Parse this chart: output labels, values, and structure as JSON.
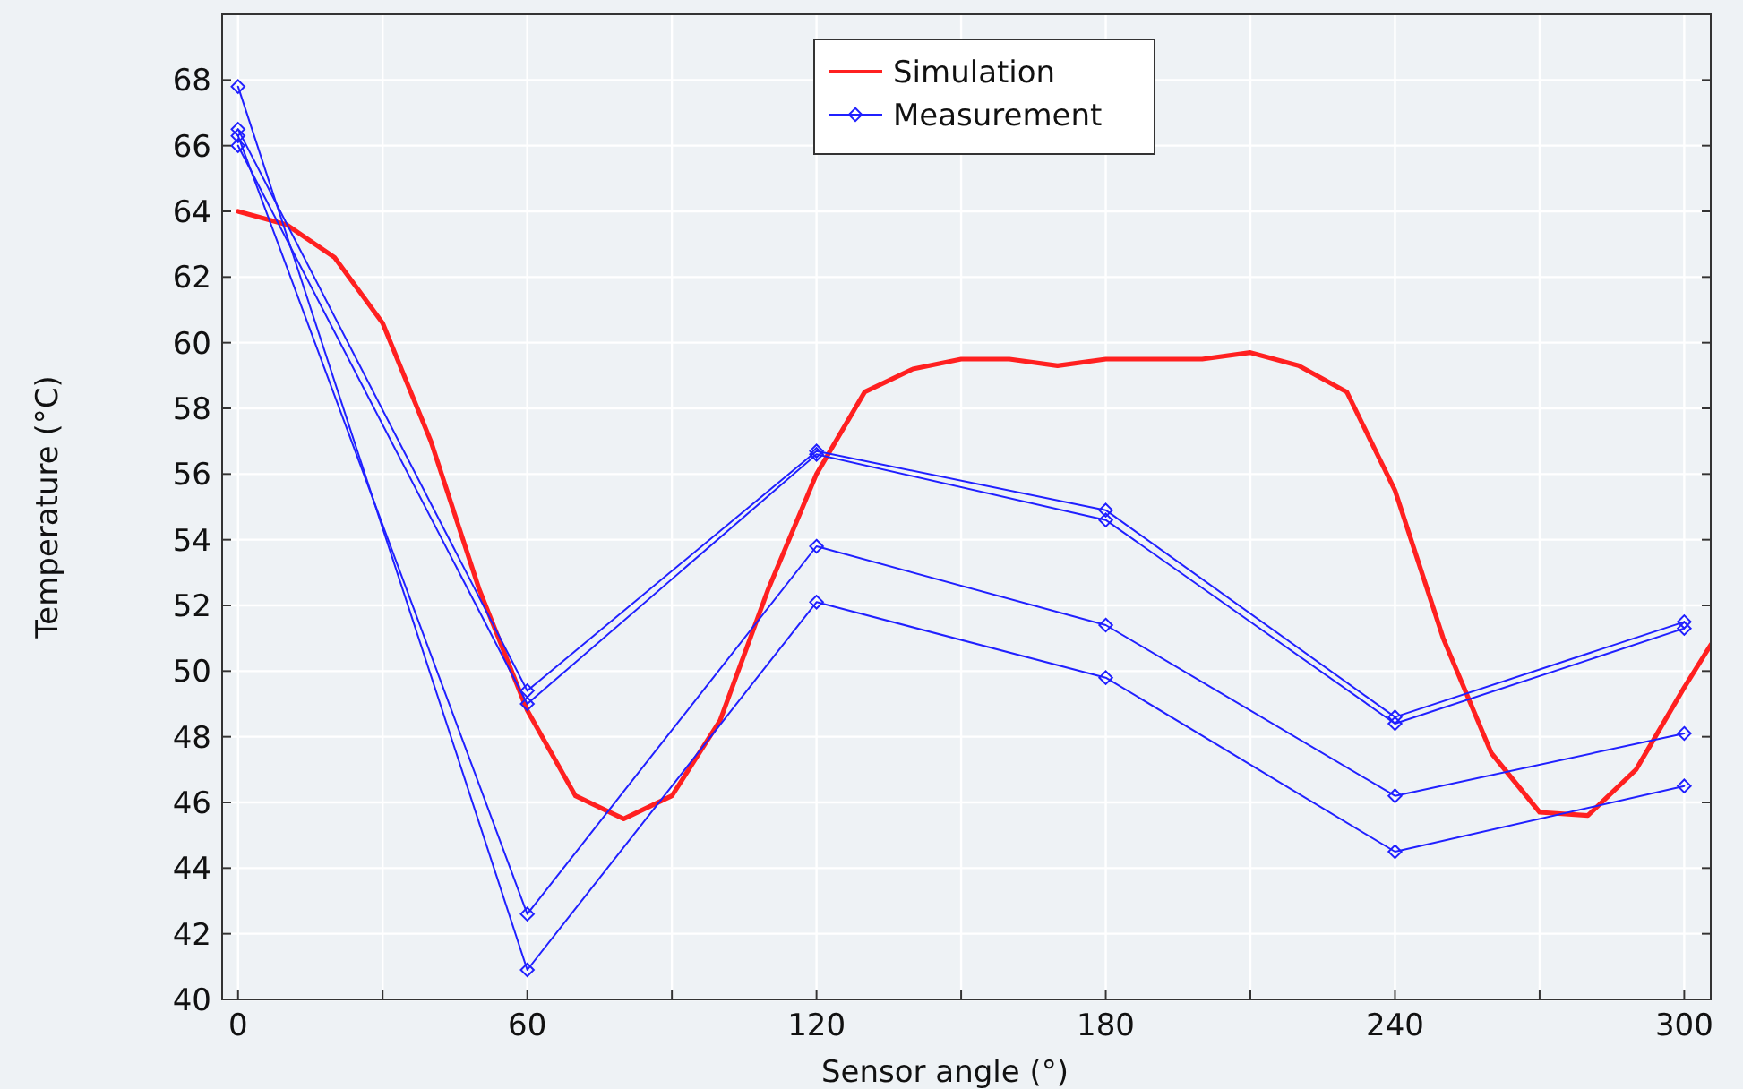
{
  "chart_data": {
    "type": "line",
    "xlabel": "Sensor angle (°)",
    "ylabel": "Temperature (°C)",
    "xlim": [
      -3.3,
      305.5
    ],
    "ylim": [
      40,
      70
    ],
    "xticks": [
      0,
      {
        "value": 30,
        "label": null
      },
      60,
      {
        "value": 90,
        "label": null
      },
      120,
      {
        "value": 150,
        "label": null
      },
      180,
      {
        "value": 210,
        "label": null
      },
      240,
      {
        "value": 270,
        "label": null
      },
      300
    ],
    "yticks": [
      40,
      42,
      44,
      46,
      48,
      50,
      52,
      54,
      56,
      58,
      60,
      62,
      64,
      66,
      68
    ],
    "grid": true,
    "legend": "top",
    "series": [
      {
        "name": "Simulation",
        "color": "#ff2020",
        "marker": "none",
        "x": [
          0,
          10,
          20,
          30,
          40,
          50,
          60,
          70,
          80,
          90,
          100,
          110,
          120,
          130,
          140,
          150,
          160,
          170,
          180,
          190,
          200,
          210,
          220,
          230,
          240,
          250,
          260,
          270,
          280,
          290,
          300,
          305.5
        ],
        "values": [
          64,
          63.6,
          62.6,
          60.6,
          57,
          52.5,
          48.8,
          46.2,
          45.5,
          46.2,
          48.5,
          52.5,
          56,
          58.5,
          59.2,
          59.5,
          59.5,
          59.3,
          59.5,
          59.5,
          59.5,
          59.7,
          59.3,
          58.5,
          55.5,
          51,
          47.5,
          45.7,
          45.6,
          47,
          49.5,
          50.8
        ]
      },
      {
        "name": "Measurement",
        "color": "#2020ff",
        "marker": "diamond",
        "x": [
          0,
          60,
          120,
          180,
          240,
          300
        ],
        "values": [
          66.5,
          49.4,
          56.7,
          54.9,
          48.6,
          51.5
        ]
      },
      {
        "color": "#2020ff",
        "marker": "diamond",
        "x": [
          0,
          60,
          120,
          180,
          240,
          300
        ],
        "values": [
          66,
          49,
          56.6,
          54.6,
          48.4,
          51.3
        ]
      },
      {
        "color": "#2020ff",
        "marker": "diamond",
        "x": [
          0,
          60,
          120,
          180,
          240,
          300
        ],
        "values": [
          66.3,
          42.6,
          53.8,
          51.4,
          46.2,
          48.1
        ]
      },
      {
        "color": "#2020ff",
        "marker": "diamond",
        "x": [
          0,
          60,
          120,
          180,
          240,
          300
        ],
        "values": [
          67.8,
          40.9,
          52.1,
          49.8,
          44.5,
          46.5
        ]
      }
    ]
  }
}
